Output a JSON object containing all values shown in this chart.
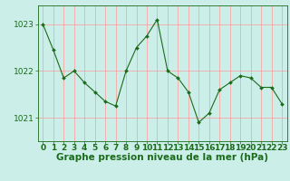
{
  "x": [
    0,
    1,
    2,
    3,
    4,
    5,
    6,
    7,
    8,
    9,
    10,
    11,
    12,
    13,
    14,
    15,
    16,
    17,
    18,
    19,
    20,
    21,
    22,
    23
  ],
  "y": [
    1023.0,
    1022.45,
    1021.85,
    1022.0,
    1021.75,
    1021.55,
    1021.35,
    1021.25,
    1022.0,
    1022.5,
    1022.75,
    1023.1,
    1022.0,
    1021.85,
    1021.55,
    1020.9,
    1021.1,
    1021.6,
    1021.75,
    1021.9,
    1021.85,
    1021.65,
    1021.65,
    1021.3
  ],
  "yticks": [
    1021,
    1022,
    1023
  ],
  "ylim": [
    1020.5,
    1023.4
  ],
  "xlim": [
    -0.5,
    23.5
  ],
  "xlabel": "Graphe pression niveau de la mer (hPa)",
  "line_color": "#1a6b1a",
  "marker_color": "#1a6b1a",
  "bg_color": "#cceee8",
  "grid_color": "#ff9999",
  "axis_label_color": "#1a6b1a",
  "tick_label_color": "#1a6b1a",
  "xlabel_fontsize": 7.5,
  "tick_fontsize": 6.5
}
